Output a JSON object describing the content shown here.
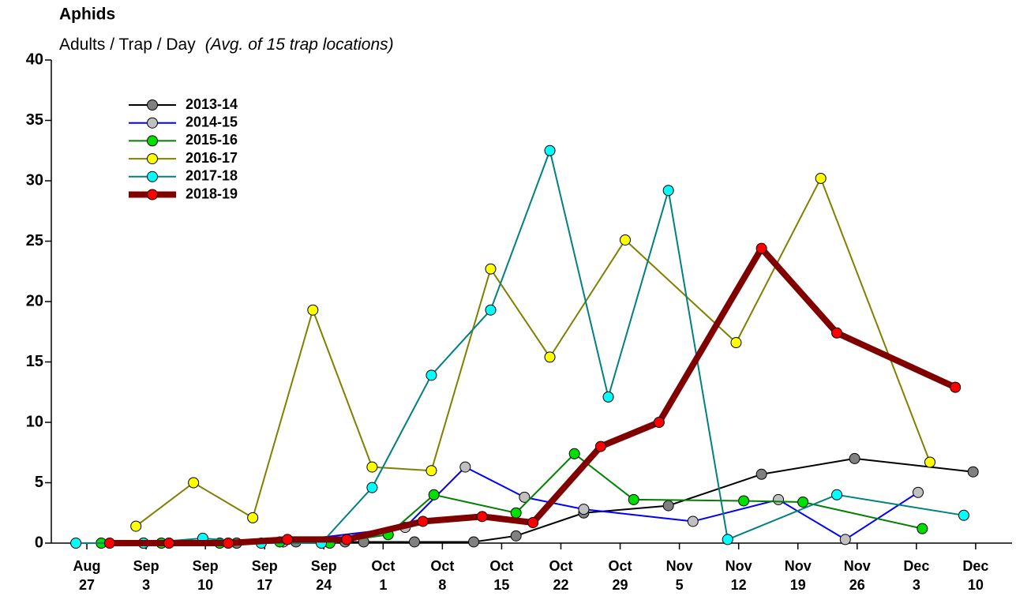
{
  "chart_data": {
    "type": "line",
    "title": "Aphids",
    "subtitle": "Adults / Trap / Day",
    "subtitle_note": "(Avg. of 15 trap locations)",
    "xlim": [
      -4.2,
      109.3
    ],
    "xticks": [
      {
        "value": 0,
        "label": "Aug 27"
      },
      {
        "value": 7,
        "label": "Sep 3"
      },
      {
        "value": 14,
        "label": "Sep 10"
      },
      {
        "value": 21,
        "label": "Sep 17"
      },
      {
        "value": 28,
        "label": "Sep 24"
      },
      {
        "value": 35,
        "label": "Oct 1"
      },
      {
        "value": 42,
        "label": "Oct 8"
      },
      {
        "value": 49,
        "label": "Oct 15"
      },
      {
        "value": 56,
        "label": "Oct 22"
      },
      {
        "value": 63,
        "label": "Oct 29"
      },
      {
        "value": 70,
        "label": "Nov 5"
      },
      {
        "value": 77,
        "label": "Nov 12"
      },
      {
        "value": 84,
        "label": "Nov 19"
      },
      {
        "value": 91,
        "label": "Nov 26"
      },
      {
        "value": 98,
        "label": "Dec 3"
      },
      {
        "value": 105,
        "label": "Dec 10"
      }
    ],
    "ylim": [
      0,
      40
    ],
    "yticks": [
      0,
      5,
      10,
      15,
      20,
      25,
      30,
      35,
      40
    ],
    "legend": "upper left",
    "series": [
      {
        "name": "2013-14",
        "color": "#000000",
        "marker_color": "#808080",
        "line_width": 2,
        "x": [
          17.7,
          24.7,
          30.5,
          32.7,
          38.7,
          45.7,
          50.7,
          58.7,
          68.7,
          79.7,
          90.7,
          104.7
        ],
        "values": [
          0,
          0.1,
          0.1,
          0.1,
          0.1,
          0.1,
          0.6,
          2.5,
          3.1,
          5.7,
          7.0,
          5.9
        ]
      },
      {
        "name": "2014-15",
        "color": "#0000ff",
        "marker_color": "#c0c0c0",
        "line_width": 2,
        "x": [
          6.7,
          23.2,
          37.6,
          44.7,
          51.7,
          58.7,
          71.6,
          81.7,
          89.6,
          98.2
        ],
        "values": [
          0,
          0.1,
          1.3,
          6.3,
          3.8,
          2.8,
          1.8,
          3.6,
          0.3,
          4.2
        ]
      },
      {
        "name": "2015-16",
        "color": "#008000",
        "marker_color": "#00e000",
        "line_width": 2,
        "x": [
          1.7,
          8.8,
          15.7,
          22.8,
          28.7,
          35.6,
          41.0,
          50.7,
          57.6,
          64.6,
          77.6,
          84.6,
          98.7
        ],
        "values": [
          0,
          0,
          0,
          0.1,
          0,
          0.7,
          4.0,
          2.5,
          7.4,
          3.6,
          3.5,
          3.4,
          1.2
        ]
      },
      {
        "name": "2016-17",
        "color": "#808000",
        "marker_color": "#ffff00",
        "line_width": 2,
        "x": [
          5.8,
          12.6,
          19.6,
          26.7,
          33.7,
          40.7,
          47.7,
          54.7,
          63.6,
          76.7,
          86.7,
          99.6
        ],
        "values": [
          1.4,
          5.0,
          2.1,
          19.3,
          6.3,
          6.0,
          22.7,
          15.4,
          25.1,
          16.6,
          30.2,
          6.7
        ]
      },
      {
        "name": "2017-18",
        "color": "#008080",
        "marker_color": "#00ffff",
        "line_width": 2,
        "x": [
          -1.3,
          6.7,
          13.7,
          20.6,
          27.7,
          33.7,
          40.7,
          47.7,
          54.7,
          61.6,
          68.7,
          75.7,
          88.6,
          103.6
        ],
        "values": [
          0,
          0,
          0.4,
          0,
          0,
          4.6,
          13.9,
          19.3,
          32.5,
          12.1,
          29.2,
          0.3,
          4.0,
          2.3
        ]
      },
      {
        "name": "2018-19",
        "color": "#800000",
        "marker_color": "#ff0000",
        "line_width": 8,
        "x": [
          2.7,
          9.7,
          16.7,
          23.7,
          30.7,
          39.7,
          46.7,
          52.7,
          60.7,
          67.6,
          79.7,
          88.6,
          102.6
        ],
        "values": [
          0,
          0,
          0,
          0.3,
          0.3,
          1.8,
          2.2,
          1.7,
          8.0,
          10.0,
          24.4,
          17.4,
          12.9
        ]
      }
    ]
  }
}
